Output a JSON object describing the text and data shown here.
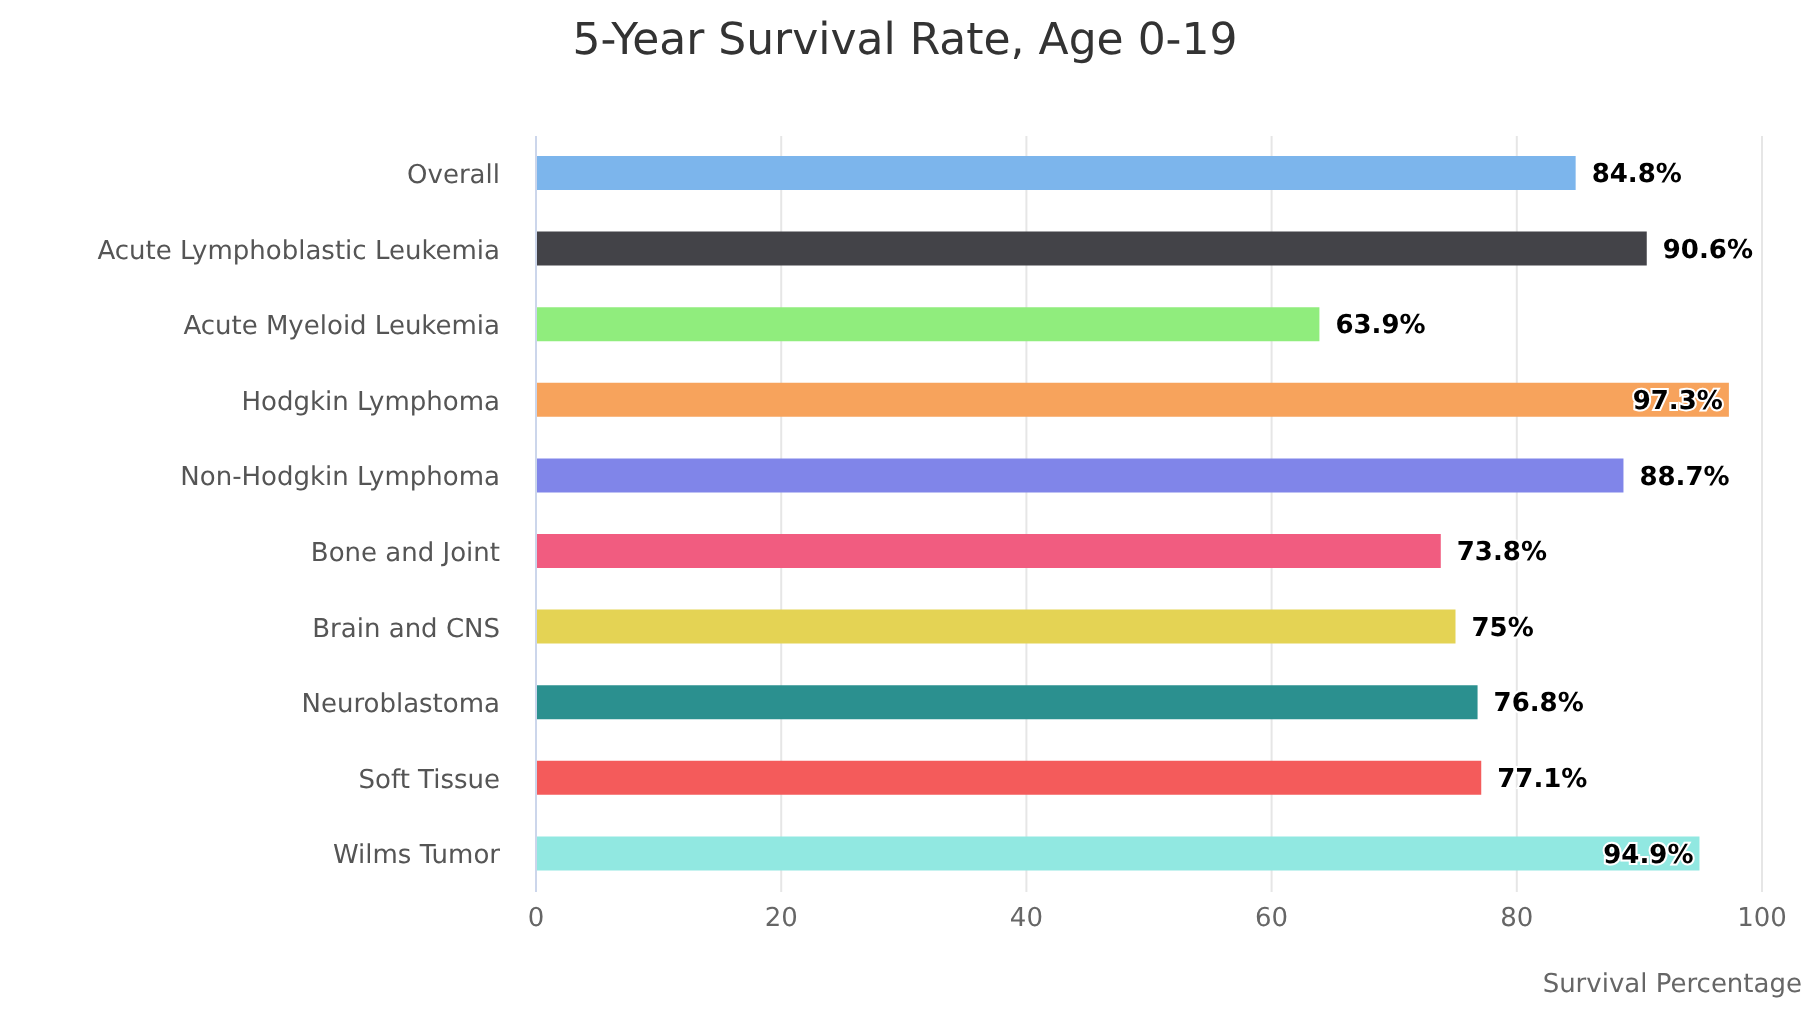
{
  "chart_data": {
    "type": "bar",
    "orientation": "horizontal",
    "title": "5-Year Survival Rate, Age 0-19",
    "xlabel": "Survival Percentage",
    "categories": [
      "Overall",
      "Acute Lymphoblastic Leukemia",
      "Acute Myeloid Leukemia",
      "Hodgkin Lymphoma",
      "Non-Hodgkin Lymphoma",
      "Bone and Joint",
      "Brain and CNS",
      "Neuroblastoma",
      "Soft Tissue",
      "Wilms Tumor"
    ],
    "values": [
      84.8,
      90.6,
      63.9,
      97.3,
      88.7,
      73.8,
      75,
      76.8,
      77.1,
      94.9
    ],
    "value_labels": [
      "84.8%",
      "90.6%",
      "63.9%",
      "97.3%",
      "88.7%",
      "73.8%",
      "75%",
      "76.8%",
      "77.1%",
      "94.9%"
    ],
    "colors": [
      "#7cb5ec",
      "#434348",
      "#90ed7d",
      "#f7a35c",
      "#8085e9",
      "#f15c80",
      "#e4d354",
      "#2b908f",
      "#f45b5b",
      "#91e8e1"
    ],
    "xlim": [
      0,
      100
    ],
    "xticks": [
      0,
      20,
      40,
      60,
      80,
      100
    ],
    "grid": "x"
  }
}
